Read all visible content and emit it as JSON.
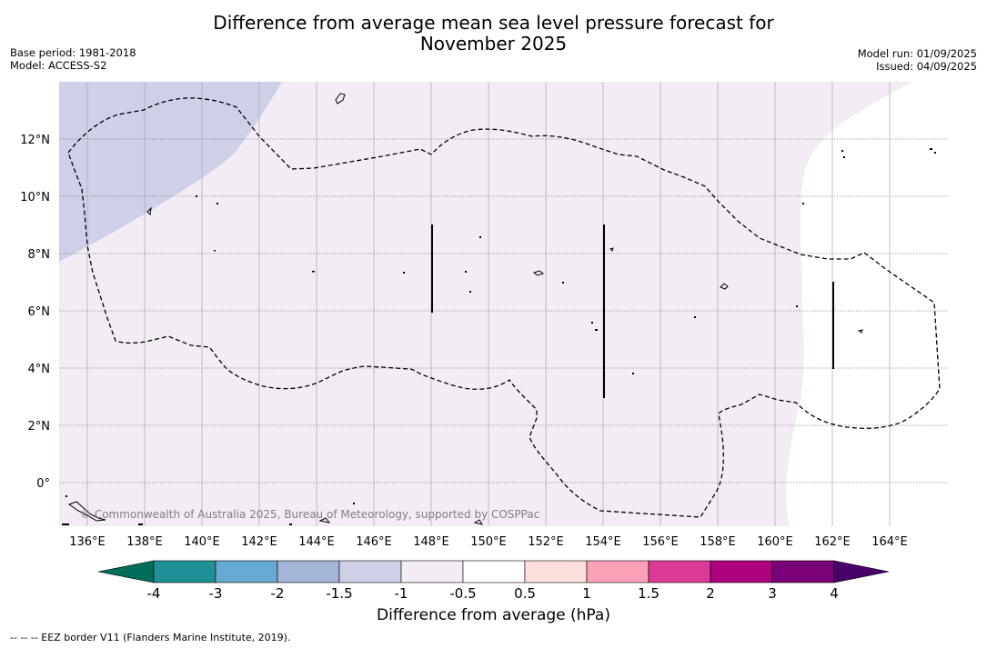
{
  "title_line1": "Difference from average mean sea level pressure forecast for",
  "title_line2": "November 2025",
  "base_period": "Base period: 1981-2018",
  "model": "Model: ACCESS-S2",
  "model_run": "Model run: 01/09/2025",
  "issued": "Issued: 04/09/2025",
  "copyright": "© Commonwealth of Australia 2025, Bureau of Meteorology, supported by COSPPac",
  "lon_labels": [
    "136°E",
    "138°E",
    "140°E",
    "142°E",
    "144°E",
    "146°E",
    "148°E",
    "150°E",
    "152°E",
    "154°E",
    "156°E",
    "158°E",
    "160°E",
    "162°E",
    "164°E"
  ],
  "lat_labels": [
    "12°N",
    "10°N",
    "8°N",
    "6°N",
    "4°N",
    "2°N",
    "0°"
  ],
  "colorbar": {
    "label": "Difference from average (hPa)",
    "ticks": [
      "-4",
      "-3",
      "-2",
      "-1.5",
      "-1",
      "-0.5",
      "0.5",
      "1",
      "1.5",
      "2",
      "3",
      "4"
    ],
    "colors": [
      "#1f9196",
      "#66a9d2",
      "#a5b5d8",
      "#cdd0e6",
      "#f3ecf5",
      "#ffffff",
      "#fde0de",
      "#f9a1b6",
      "#dc3a97",
      "#ad0280",
      "#7a0178"
    ],
    "under_color": "#006e5a",
    "over_color": "#48006a"
  },
  "footnote": "--  --  -- EEZ border V11 (Flanders Marine Institute, 2019)."
}
